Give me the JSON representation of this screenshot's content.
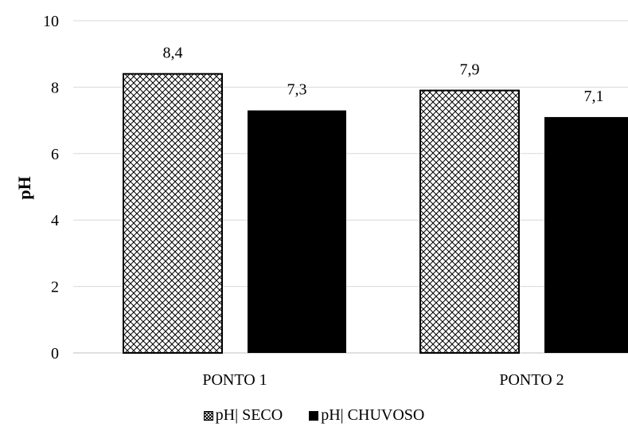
{
  "chart_data": {
    "type": "bar",
    "title": "",
    "xlabel": "",
    "ylabel": "pH",
    "ylim": [
      0,
      10
    ],
    "yticks": [
      "0",
      "2",
      "4",
      "6",
      "8",
      "10"
    ],
    "categories": [
      "PONTO 1",
      "PONTO 2"
    ],
    "series": [
      {
        "name": "pH| SECO",
        "values": [
          8.4,
          7.9
        ],
        "labels": [
          "8,4",
          "7,9"
        ],
        "fill": "hatch",
        "color": "#000000"
      },
      {
        "name": "pH| CHUVOSO",
        "values": [
          7.3,
          7.1
        ],
        "labels": [
          "7,3",
          "7,1"
        ],
        "fill": "solid",
        "color": "#000000"
      }
    ],
    "grid": true,
    "gridColor": "#d9d9d9",
    "legend": "bottom"
  }
}
